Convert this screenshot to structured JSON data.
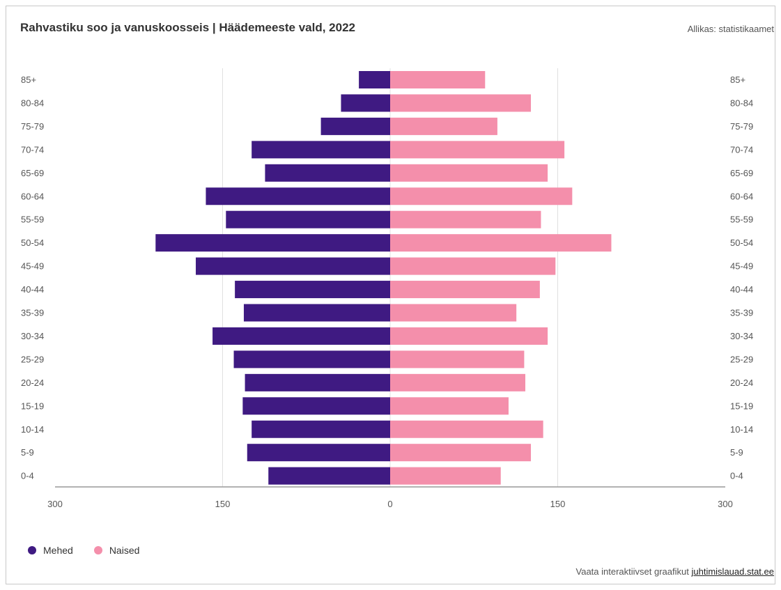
{
  "header": {
    "title": "Rahvastiku soo ja vanuskoosseis | Häädemeeste vald, 2022",
    "source": "Allikas: statistikaamet"
  },
  "footer": {
    "text": "Vaata interaktiivset graafikut",
    "link": "juhtimislauad.stat.ee"
  },
  "colors": {
    "male": "#3f1a82",
    "female": "#f48fab",
    "grid": "#e0e0e0",
    "axis": "#999999"
  },
  "chart_data": {
    "type": "bar",
    "orientation": "horizontal-pyramid",
    "categories": [
      "85+",
      "80-84",
      "75-79",
      "70-74",
      "65-69",
      "60-64",
      "55-59",
      "50-54",
      "45-49",
      "40-44",
      "35-39",
      "30-34",
      "25-29",
      "20-24",
      "15-19",
      "10-14",
      "5-9",
      "0-4"
    ],
    "series": [
      {
        "name": "Mehed",
        "values": [
          28,
          44,
          62,
          124,
          112,
          165,
          147,
          210,
          174,
          139,
          131,
          159,
          140,
          130,
          132,
          124,
          128,
          109
        ]
      },
      {
        "name": "Naised",
        "values": [
          85,
          126,
          96,
          156,
          141,
          163,
          135,
          198,
          148,
          134,
          113,
          141,
          120,
          121,
          106,
          137,
          126,
          99
        ]
      }
    ],
    "xlim": [
      -300,
      300
    ],
    "x_ticks": [
      "300",
      "150",
      "0",
      "150",
      "300"
    ],
    "x_tick_values": [
      -300,
      -150,
      0,
      150,
      300
    ],
    "legend_position": "bottom-left",
    "grid": true
  }
}
